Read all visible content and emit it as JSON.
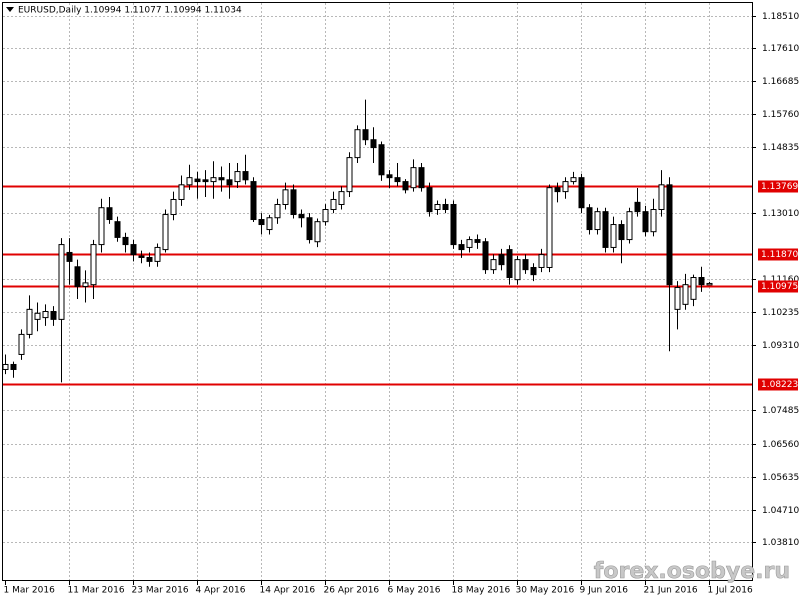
{
  "chart_data": {
    "type": "candlestick",
    "title": "EURUSD,Daily  1.10994 1.11077 1.10994 1.11034",
    "watermark": "forex.osobye.ru",
    "categories": [
      "1 Mar 2016",
      null,
      null,
      null,
      null,
      null,
      null,
      null,
      "11 Mar 2016",
      null,
      null,
      null,
      null,
      null,
      null,
      null,
      "23 Mar 2016",
      null,
      null,
      null,
      null,
      null,
      null,
      null,
      "4 Apr 2016",
      null,
      null,
      null,
      null,
      null,
      null,
      null,
      "14 Apr 2016",
      null,
      null,
      null,
      null,
      null,
      null,
      null,
      "26 Apr 2016",
      null,
      null,
      null,
      null,
      null,
      null,
      null,
      "6 May 2016",
      null,
      null,
      null,
      null,
      null,
      null,
      null,
      "18 May 2016",
      null,
      null,
      null,
      null,
      null,
      null,
      null,
      "30 May 2016",
      null,
      null,
      null,
      null,
      null,
      null,
      null,
      "9 Jun 2016",
      null,
      null,
      null,
      null,
      null,
      null,
      null,
      "21 Jun 2016",
      null,
      null,
      null,
      null,
      null,
      null,
      null,
      "1 Jul 2016"
    ],
    "ohlc": [
      [
        1.0863,
        1.0905,
        1.085,
        1.0877
      ],
      [
        1.0877,
        1.0885,
        1.084,
        1.0863
      ],
      [
        1.0905,
        1.0975,
        1.089,
        1.0961
      ],
      [
        1.0961,
        1.107,
        1.095,
        1.1031
      ],
      [
        1.1003,
        1.105,
        1.097,
        1.102
      ],
      [
        1.1008,
        1.1045,
        1.0985,
        1.1025
      ],
      [
        1.1025,
        1.104,
        1.0985,
        1.1003
      ],
      [
        1.1003,
        1.123,
        1.0827,
        1.1212
      ],
      [
        1.119,
        1.123,
        1.11,
        1.1165
      ],
      [
        1.115,
        1.117,
        1.106,
        1.1095
      ],
      [
        1.1095,
        1.114,
        1.105,
        1.1105
      ],
      [
        1.11,
        1.1225,
        1.106,
        1.1212
      ],
      [
        1.1212,
        1.134,
        1.119,
        1.1315
      ],
      [
        1.1315,
        1.1345,
        1.127,
        1.1282
      ],
      [
        1.1276,
        1.129,
        1.122,
        1.1232
      ],
      [
        1.1232,
        1.1245,
        1.119,
        1.1212
      ],
      [
        1.1212,
        1.1225,
        1.1165,
        1.1184
      ],
      [
        1.118,
        1.1195,
        1.116,
        1.1176
      ],
      [
        1.1176,
        1.119,
        1.115,
        1.1165
      ],
      [
        1.1165,
        1.1215,
        1.115,
        1.1204
      ],
      [
        1.1198,
        1.131,
        1.119,
        1.1296
      ],
      [
        1.1296,
        1.136,
        1.128,
        1.1338
      ],
      [
        1.1338,
        1.1405,
        1.132,
        1.1379
      ],
      [
        1.1379,
        1.1435,
        1.1365,
        1.1399
      ],
      [
        1.1395,
        1.1415,
        1.134,
        1.1388
      ],
      [
        1.1393,
        1.142,
        1.1345,
        1.1388
      ],
      [
        1.1388,
        1.1445,
        1.134,
        1.1399
      ],
      [
        1.1399,
        1.143,
        1.136,
        1.1393
      ],
      [
        1.1393,
        1.144,
        1.134,
        1.1379
      ],
      [
        1.1388,
        1.144,
        1.137,
        1.1416
      ],
      [
        1.1416,
        1.1463,
        1.138,
        1.1393
      ],
      [
        1.1388,
        1.14,
        1.1275,
        1.1282
      ],
      [
        1.1282,
        1.13,
        1.124,
        1.1268
      ],
      [
        1.1254,
        1.1295,
        1.124,
        1.1287
      ],
      [
        1.1287,
        1.134,
        1.127,
        1.1324
      ],
      [
        1.1324,
        1.1385,
        1.131,
        1.1365
      ],
      [
        1.1365,
        1.138,
        1.1285,
        1.1296
      ],
      [
        1.1296,
        1.131,
        1.126,
        1.1287
      ],
      [
        1.1287,
        1.13,
        1.1215,
        1.1226
      ],
      [
        1.122,
        1.1285,
        1.1205,
        1.1276
      ],
      [
        1.1276,
        1.1325,
        1.1265,
        1.131
      ],
      [
        1.131,
        1.136,
        1.13,
        1.1338
      ],
      [
        1.1324,
        1.1375,
        1.131,
        1.136
      ],
      [
        1.136,
        1.147,
        1.1345,
        1.1455
      ],
      [
        1.1455,
        1.1545,
        1.144,
        1.1533
      ],
      [
        1.1533,
        1.1617,
        1.149,
        1.1505
      ],
      [
        1.1505,
        1.154,
        1.144,
        1.1483
      ],
      [
        1.1491,
        1.15,
        1.139,
        1.1407
      ],
      [
        1.1407,
        1.142,
        1.137,
        1.1399
      ],
      [
        1.1399,
        1.144,
        1.1375,
        1.1388
      ],
      [
        1.1388,
        1.1395,
        1.1355,
        1.1365
      ],
      [
        1.1371,
        1.145,
        1.136,
        1.1427
      ],
      [
        1.1427,
        1.144,
        1.136,
        1.1371
      ],
      [
        1.1371,
        1.1385,
        1.129,
        1.1304
      ],
      [
        1.131,
        1.1335,
        1.1295,
        1.1324
      ],
      [
        1.1324,
        1.134,
        1.13,
        1.131
      ],
      [
        1.1324,
        1.1335,
        1.12,
        1.1212
      ],
      [
        1.1212,
        1.1225,
        1.1175,
        1.1198
      ],
      [
        1.1204,
        1.1235,
        1.119,
        1.1226
      ],
      [
        1.1226,
        1.124,
        1.12,
        1.1218
      ],
      [
        1.122,
        1.123,
        1.113,
        1.1142
      ],
      [
        1.1142,
        1.1185,
        1.113,
        1.117
      ],
      [
        1.1184,
        1.12,
        1.114,
        1.1156
      ],
      [
        1.1198,
        1.121,
        1.11,
        1.112
      ],
      [
        1.1114,
        1.118,
        1.11,
        1.117
      ],
      [
        1.117,
        1.1185,
        1.113,
        1.1142
      ],
      [
        1.1148,
        1.116,
        1.111,
        1.1128
      ],
      [
        1.1148,
        1.12,
        1.1135,
        1.1184
      ],
      [
        1.1148,
        1.138,
        1.1135,
        1.1371
      ],
      [
        1.1371,
        1.1385,
        1.133,
        1.136
      ],
      [
        1.136,
        1.14,
        1.134,
        1.1388
      ],
      [
        1.1388,
        1.1415,
        1.138,
        1.1399
      ],
      [
        1.1399,
        1.141,
        1.13,
        1.1315
      ],
      [
        1.1315,
        1.1325,
        1.124,
        1.1254
      ],
      [
        1.1254,
        1.1315,
        1.124,
        1.1304
      ],
      [
        1.1304,
        1.1315,
        1.119,
        1.1204
      ],
      [
        1.1204,
        1.129,
        1.119,
        1.1268
      ],
      [
        1.1268,
        1.128,
        1.116,
        1.1226
      ],
      [
        1.1226,
        1.1315,
        1.1215,
        1.1304
      ],
      [
        1.133,
        1.137,
        1.129,
        1.1304
      ],
      [
        1.1304,
        1.132,
        1.1235,
        1.1248
      ],
      [
        1.1248,
        1.134,
        1.1235,
        1.131
      ],
      [
        1.131,
        1.142,
        1.129,
        1.1379
      ],
      [
        1.1379,
        1.14,
        1.0914,
        1.11
      ],
      [
        1.1031,
        1.111,
        1.0975,
        1.1092
      ],
      [
        1.1045,
        1.113,
        1.103,
        1.11
      ],
      [
        1.1059,
        1.1128,
        1.104,
        1.112
      ],
      [
        1.112,
        1.115,
        1.108,
        1.11
      ],
      [
        1.10994,
        1.11077,
        1.10994,
        1.11034
      ]
    ],
    "bull_color": "#ffffff",
    "bear_color": "#000000",
    "ylim": [
      1.0272,
      1.1887
    ],
    "yticks": [
      {
        "value": 1.1851,
        "label": "1.18510"
      },
      {
        "value": 1.1761,
        "label": "1.17610"
      },
      {
        "value": 1.16685,
        "label": "1.16685"
      },
      {
        "value": 1.1576,
        "label": "1.15760"
      },
      {
        "value": 1.14835,
        "label": "1.14835"
      },
      {
        "value": 1.1301,
        "label": "1.13010"
      },
      {
        "value": 1.1116,
        "label": "1.11160"
      },
      {
        "value": 1.10235,
        "label": "1.10235"
      },
      {
        "value": 1.0931,
        "label": "1.09310"
      },
      {
        "value": 1.07485,
        "label": "1.07485"
      },
      {
        "value": 1.0656,
        "label": "1.06560"
      },
      {
        "value": 1.05635,
        "label": "1.05635"
      },
      {
        "value": 1.0471,
        "label": "1.04710"
      },
      {
        "value": 1.0381,
        "label": "1.03810"
      }
    ],
    "levels": [
      {
        "value": 1.13769,
        "label": "1.13769"
      },
      {
        "value": 1.1187,
        "label": "1.11870"
      },
      {
        "value": 1.10975,
        "label": "1.10975"
      },
      {
        "value": 1.08223,
        "label": "1.08223"
      }
    ],
    "level_color": "#e00000",
    "grid": true
  }
}
